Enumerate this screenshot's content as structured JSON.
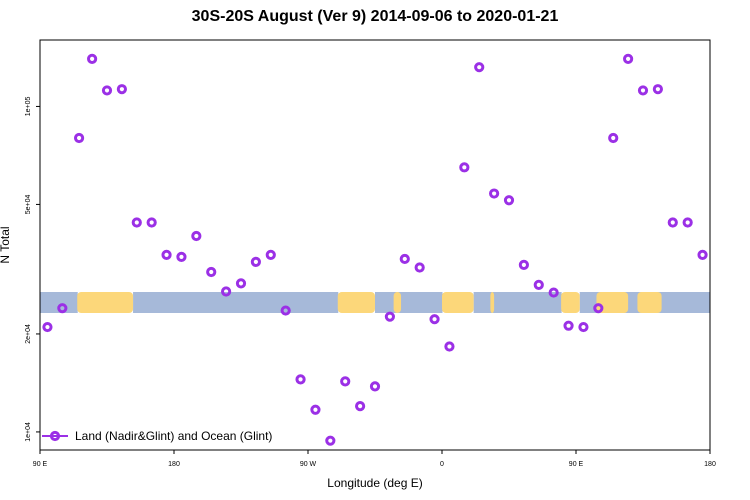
{
  "chart_data": {
    "type": "scatter",
    "title": "30S-20S August (Ver 9)   2014-09-06 to 2020-01-21",
    "xlabel": "Longitude (deg E)",
    "ylabel": "N Total",
    "x_tick_labels": [
      "90 E",
      "180",
      "90 W",
      "0",
      "90 E",
      "180"
    ],
    "y_tick_labels": [
      "1e+04",
      "2e+04",
      "5e+04",
      "1e+05"
    ],
    "y_scale": "log",
    "xlim": [
      90,
      450
    ],
    "ylim": [
      8800,
      160000
    ],
    "grid": false,
    "legend_position": "bottom-left",
    "colors": {
      "series": "#9b30e6",
      "land": "#fcd77a",
      "ocean": "#a6b9d9"
    },
    "series": [
      {
        "name": "Land (Nadir&Glint) and Ocean (Glint)",
        "x": [
          94,
          102,
          111,
          118,
          126,
          134,
          142,
          150,
          158,
          166,
          174,
          182,
          190,
          198,
          206,
          214,
          222,
          230,
          238,
          246,
          254,
          262,
          270,
          278,
          286,
          294,
          302,
          310,
          318,
          326,
          334,
          342,
          350,
          358,
          366,
          374,
          382,
          390,
          398,
          406,
          414,
          422,
          430,
          438,
          446
        ],
        "y": [
          21000,
          24000,
          80000,
          140000,
          112000,
          113000,
          44000,
          44000,
          35000,
          34500,
          40000,
          31000,
          27000,
          28600,
          33300,
          35000,
          23600,
          14500,
          11700,
          9400,
          14300,
          12000,
          13800,
          22600,
          34000,
          32000,
          22200,
          18300,
          65000,
          132000,
          54000,
          51500,
          32600,
          28300,
          26800,
          21200,
          21000,
          24000,
          80000,
          140000,
          112000,
          113000,
          44000,
          44000,
          35000
        ]
      }
    ],
    "map_segments": {
      "land_lon": [
        [
          110,
          140
        ],
        [
          250,
          270
        ],
        [
          306,
          323
        ],
        [
          332,
          334
        ],
        [
          370,
          380
        ],
        [
          389,
          406
        ],
        [
          411,
          424
        ],
        [
          280,
          284
        ]
      ],
      "ocean_lon": [
        [
          90,
          110
        ],
        [
          140,
          250
        ],
        [
          270,
          306
        ],
        [
          323,
          370
        ],
        [
          380,
          450
        ]
      ]
    }
  }
}
